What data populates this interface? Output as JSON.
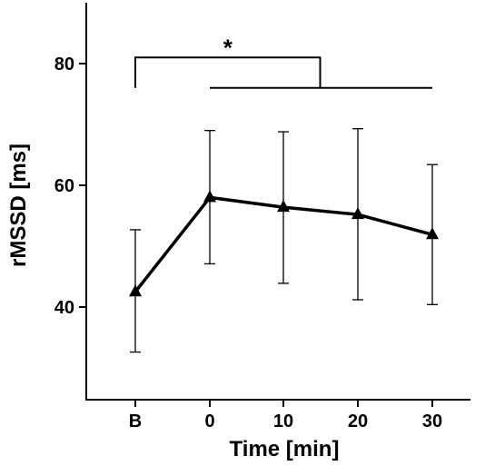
{
  "chart_data": {
    "type": "line",
    "title": "",
    "xlabel": "Time [min]",
    "ylabel": "rMSSD [ms]",
    "categories": [
      "B",
      "0",
      "10",
      "20",
      "30"
    ],
    "ylim": [
      25,
      90
    ],
    "yticks": [
      40,
      60,
      80
    ],
    "grid": false,
    "series": [
      {
        "values": [
          42.5,
          58.0,
          56.4,
          55.2,
          51.9
        ],
        "error_low": [
          32.6,
          47.1,
          43.9,
          41.2,
          40.4
        ],
        "error_high": [
          52.7,
          69.0,
          68.8,
          69.3,
          63.4
        ],
        "marker": "triangle",
        "color": "#000000"
      }
    ],
    "annotations": [
      {
        "type": "significance-bracket",
        "text": "*",
        "from_category": "B",
        "to_x": 15,
        "y": 81,
        "tick_down_to": 76,
        "span_from_category": "0",
        "span_to_category": "30",
        "span_y": 76
      }
    ]
  }
}
